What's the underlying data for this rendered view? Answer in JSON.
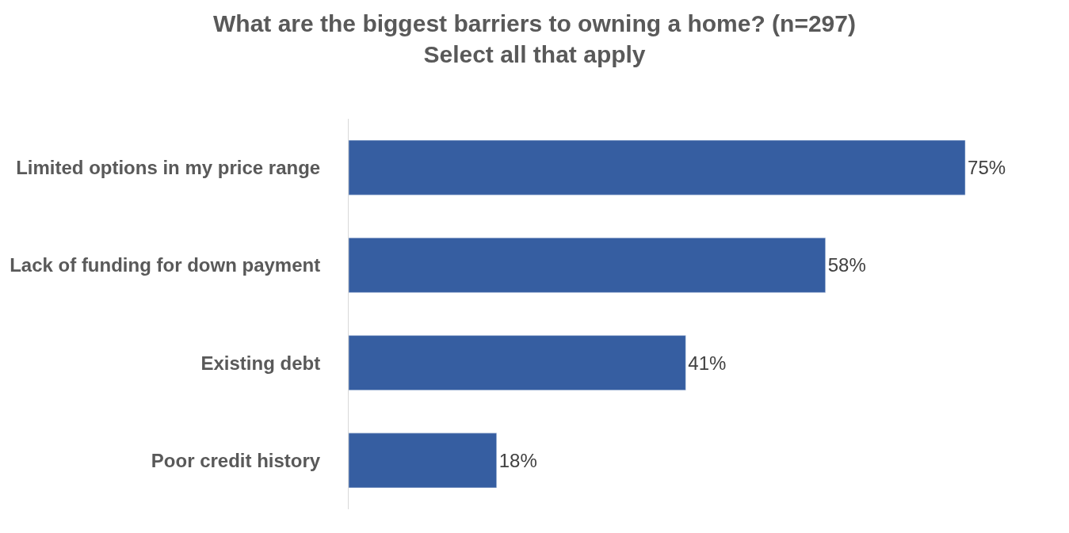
{
  "chart_data": {
    "type": "bar",
    "orientation": "horizontal",
    "title": "What are the biggest barriers to owning a home? (n=297)\nSelect all that apply",
    "categories": [
      "Limited options in my price range",
      "Lack of funding for down payment",
      "Existing debt",
      "Poor credit history"
    ],
    "values": [
      75,
      58,
      41,
      18
    ],
    "value_labels": [
      "75%",
      "58%",
      "41%",
      "18%"
    ],
    "color": "#365ea1",
    "legend": false
  }
}
